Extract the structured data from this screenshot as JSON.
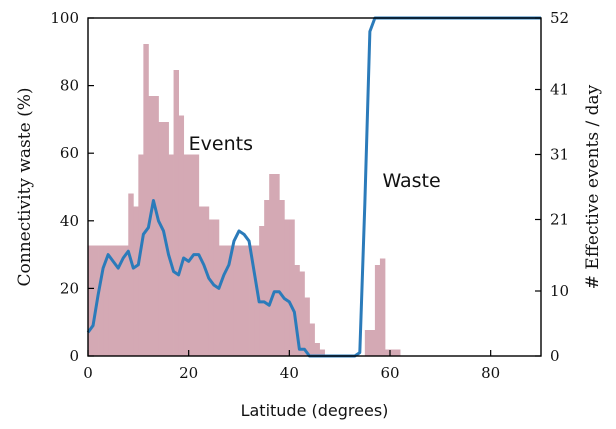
{
  "chart_data": {
    "type": "bar+line",
    "title": "",
    "xlabel": "Latitude (degrees)",
    "ylabel_left": "Connectivity waste (%)",
    "ylabel_right": "# Effective events / day",
    "xlim": [
      0,
      90
    ],
    "ylim_left": [
      0,
      100
    ],
    "ylim_right": [
      0,
      52
    ],
    "xticks": [
      0,
      20,
      40,
      60,
      80
    ],
    "yticks_left": [
      0,
      20,
      40,
      60,
      80,
      100
    ],
    "yticks_right": [
      0,
      10,
      21,
      31,
      41,
      52
    ],
    "grid": false,
    "bar_color": "#d4a9b4",
    "line_color": "#2b7bba",
    "annotations": [
      {
        "text": "Events",
        "x": 20,
        "y": 61
      },
      {
        "text": "Waste",
        "x": 58.5,
        "y": 50
      }
    ],
    "series": [
      {
        "name": "Events",
        "kind": "bar",
        "axis": "right",
        "bin_width": 1,
        "x": [
          0,
          1,
          2,
          3,
          4,
          5,
          6,
          7,
          8,
          9,
          10,
          11,
          12,
          13,
          14,
          15,
          16,
          17,
          18,
          19,
          20,
          21,
          22,
          23,
          24,
          25,
          26,
          27,
          28,
          29,
          30,
          31,
          32,
          33,
          34,
          35,
          36,
          37,
          38,
          39,
          40,
          41,
          42,
          43,
          44,
          45,
          46,
          47,
          48,
          49,
          50,
          51,
          52,
          53,
          54,
          55,
          56,
          57,
          58,
          59,
          60,
          61
        ],
        "values": [
          17,
          17,
          17,
          17,
          17,
          17,
          17,
          17,
          25,
          23,
          31,
          48,
          40,
          40,
          36,
          36,
          31,
          44,
          37,
          31,
          31,
          31,
          23,
          23,
          21,
          21,
          17,
          17,
          17,
          17,
          17,
          17,
          17,
          17,
          20,
          24,
          28,
          28,
          24,
          21,
          21,
          14,
          13,
          9,
          5,
          2,
          1,
          0,
          0,
          0,
          0,
          0,
          0,
          0,
          0,
          4,
          4,
          14,
          15,
          1,
          1,
          1
        ]
      },
      {
        "name": "Waste",
        "kind": "line",
        "axis": "left",
        "x": [
          0,
          1,
          2,
          3,
          4,
          5,
          6,
          7,
          8,
          9,
          10,
          11,
          12,
          13,
          14,
          15,
          16,
          17,
          18,
          19,
          20,
          21,
          22,
          23,
          24,
          25,
          26,
          27,
          28,
          29,
          30,
          31,
          32,
          33,
          34,
          35,
          36,
          37,
          38,
          39,
          40,
          41,
          42,
          43,
          44,
          45,
          46,
          47,
          48,
          49,
          50,
          51,
          52,
          53,
          54,
          55,
          56,
          57,
          58,
          59,
          60,
          70,
          80,
          90
        ],
        "values": [
          7,
          9,
          18,
          26,
          30,
          28,
          26,
          29,
          31,
          26,
          27,
          36,
          38,
          46,
          40,
          37,
          30,
          25,
          24,
          29,
          28,
          30,
          30,
          27,
          23,
          21,
          20,
          24,
          27,
          34,
          37,
          36,
          34,
          25,
          16,
          16,
          15,
          19,
          19,
          17,
          16,
          13,
          2,
          2,
          0,
          0,
          0,
          0,
          0,
          0,
          0,
          0,
          0,
          0,
          1,
          45,
          96,
          100,
          100,
          100,
          100,
          100,
          100,
          100
        ]
      }
    ]
  }
}
